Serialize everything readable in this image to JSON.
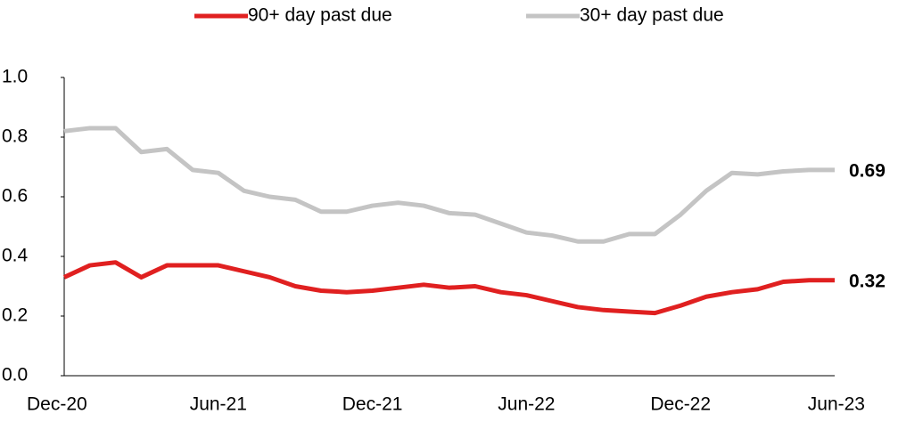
{
  "chart_data": {
    "type": "line",
    "categories": [
      "Dec-20",
      null,
      null,
      null,
      null,
      null,
      "Jun-21",
      null,
      null,
      null,
      null,
      null,
      "Dec-21",
      null,
      null,
      null,
      null,
      null,
      "Jun-22",
      null,
      null,
      null,
      null,
      null,
      "Dec-22",
      null,
      null,
      null,
      null,
      null,
      "Jun-23"
    ],
    "series": [
      {
        "name": "90+ day past due",
        "color": "#e02020",
        "values": [
          0.33,
          0.37,
          0.38,
          0.33,
          0.37,
          0.37,
          0.37,
          0.35,
          0.33,
          0.3,
          0.285,
          0.28,
          0.285,
          0.295,
          0.305,
          0.295,
          0.3,
          0.28,
          0.27,
          0.25,
          0.23,
          0.22,
          0.215,
          0.21,
          0.235,
          0.265,
          0.28,
          0.29,
          0.315,
          0.32,
          0.32
        ]
      },
      {
        "name": "30+ day past due",
        "color": "#c4c4c4",
        "values": [
          0.82,
          0.83,
          0.83,
          0.75,
          0.76,
          0.69,
          0.68,
          0.62,
          0.6,
          0.59,
          0.55,
          0.55,
          0.57,
          0.58,
          0.57,
          0.545,
          0.54,
          0.51,
          0.48,
          0.47,
          0.45,
          0.45,
          0.475,
          0.475,
          0.54,
          0.62,
          0.68,
          0.675,
          0.685,
          0.69,
          0.69
        ]
      }
    ],
    "ylim": [
      0,
      1
    ],
    "yticks": [
      {
        "value": 0,
        "label": "0.0"
      },
      0.2,
      0.4,
      0.6,
      0.8,
      {
        "value": 1,
        "label": "1.0"
      }
    ],
    "grid": false,
    "legend": "top"
  }
}
